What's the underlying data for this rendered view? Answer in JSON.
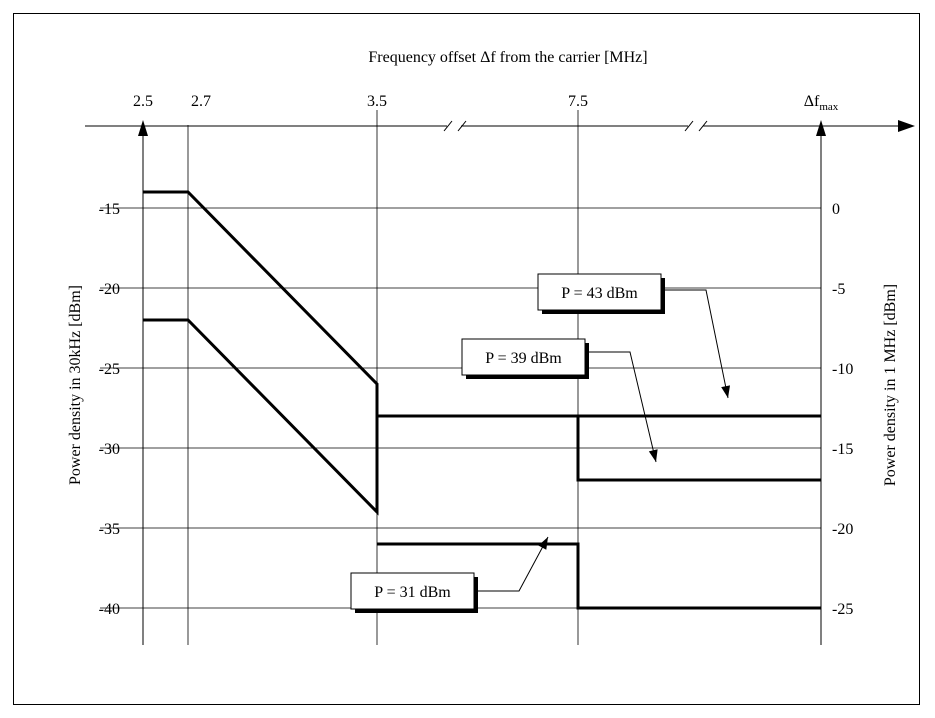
{
  "chart_data": {
    "type": "line",
    "title": "Frequency offset Δf from the carrier [MHz]",
    "xlabel": "Frequency offset Δf from the carrier [MHz]",
    "ylabel_left": "Power density in 30kHz [dBm]",
    "ylabel_right": "Power density in 1 MHz [dBm]",
    "x_ticks": [
      "2.5",
      "2.7",
      "3.5",
      "7.5"
    ],
    "x_tick_max": {
      "main": "Δf",
      "sub": "max"
    },
    "left_ticks": [
      -15,
      -20,
      -25,
      -30,
      -35,
      -40
    ],
    "right_ticks": [
      0,
      -5,
      -10,
      -15,
      -20,
      -25
    ],
    "ylim_left": [
      -43,
      -12
    ],
    "grid": true,
    "x_axis_breaks": [
      "between 3.5 and 7.5",
      "between 7.5 and Δfmax"
    ],
    "series": [
      {
        "name": "P = 43 dBm",
        "points": [
          [
            "2.5",
            -14
          ],
          [
            "2.7",
            -14
          ],
          [
            "3.5",
            -26
          ],
          [
            "3.5",
            -28
          ],
          [
            "7.5",
            -28
          ],
          [
            "Δfmax",
            -28
          ]
        ]
      },
      {
        "name": "P = 39 dBm",
        "points": [
          [
            "2.5",
            -22
          ],
          [
            "2.7",
            -22
          ],
          [
            "3.5",
            -34
          ],
          [
            "3.5",
            -28
          ],
          [
            "7.5",
            -28
          ],
          [
            "7.5",
            -32
          ],
          [
            "Δfmax",
            -32
          ]
        ]
      },
      {
        "name": "P = 31 dBm",
        "points": [
          [
            "3.5",
            -36
          ],
          [
            "7.5",
            -36
          ],
          [
            "7.5",
            -40
          ],
          [
            "Δfmax",
            -40
          ]
        ]
      }
    ]
  }
}
